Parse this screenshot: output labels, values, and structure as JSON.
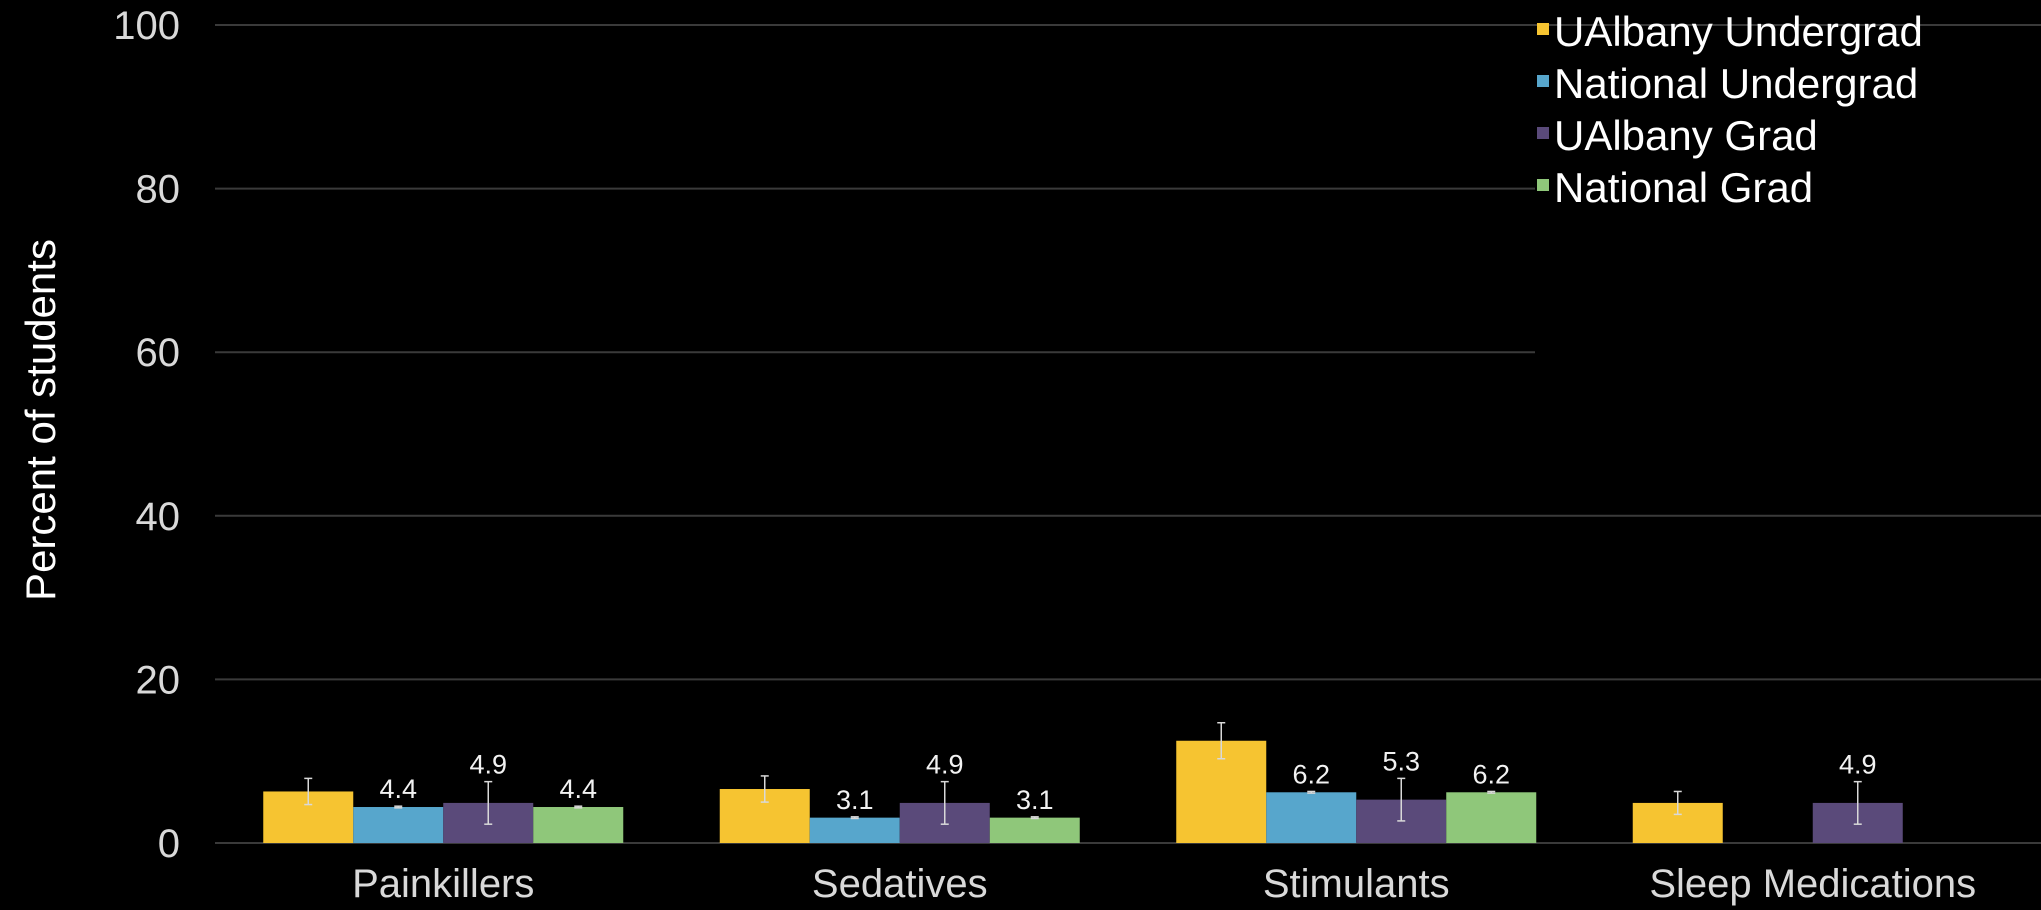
{
  "chart_data": {
    "type": "bar",
    "ylabel": "Percent of students",
    "xlabel": "",
    "ylim": [
      0,
      100
    ],
    "yticks": [
      "0",
      "20",
      "40",
      "60",
      "80",
      "100"
    ],
    "grid": true,
    "legend_position": "top-right",
    "categories": [
      "Painkillers",
      "Sedatives",
      "Stimulants",
      "Sleep Medications"
    ],
    "series": [
      {
        "name": "UAlbany Undergrad",
        "color": "#f6c431",
        "values": [
          6.3,
          6.6,
          12.5,
          4.9
        ],
        "labels": [
          "",
          "",
          "",
          ""
        ],
        "errors": [
          1.6,
          1.6,
          2.2,
          1.4
        ]
      },
      {
        "name": "National Undergrad",
        "color": "#57a6cc",
        "values": [
          4.4,
          3.1,
          6.2,
          null
        ],
        "labels": [
          "4.4",
          "3.1",
          "6.2",
          ""
        ],
        "errors": [
          0.1,
          0.1,
          0.1,
          0
        ]
      },
      {
        "name": "UAlbany Grad",
        "color": "#5a4a7a",
        "values": [
          4.9,
          4.9,
          5.3,
          4.9
        ],
        "labels": [
          "4.9",
          "4.9",
          "5.3",
          "4.9"
        ],
        "errors": [
          2.6,
          2.6,
          2.6,
          2.6
        ]
      },
      {
        "name": "National Grad",
        "color": "#8fc77a",
        "values": [
          4.4,
          3.1,
          6.2,
          null
        ],
        "labels": [
          "4.4",
          "3.1",
          "6.2",
          ""
        ],
        "errors": [
          0.1,
          0.1,
          0.1,
          0
        ]
      }
    ]
  }
}
